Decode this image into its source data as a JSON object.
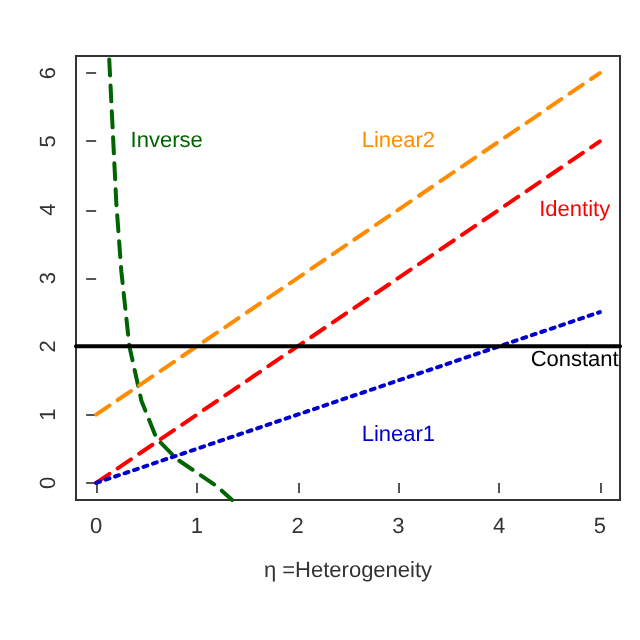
{
  "chart_data": {
    "type": "line",
    "xlabel": "η =Heterogeneity",
    "xlim": [
      -0.2,
      5.2
    ],
    "ylim": [
      -0.25,
      6.25
    ],
    "xticks": [
      0,
      1,
      2,
      3,
      4,
      5
    ],
    "yticks": [
      0,
      1,
      2,
      3,
      4,
      5,
      6
    ],
    "grid": false,
    "legend": false,
    "marker": "none",
    "series": [
      {
        "name": "Inverse",
        "color": "#006400",
        "line_style": "dashed",
        "x": [
          0.13,
          0.2,
          0.25,
          0.33,
          0.45,
          0.6,
          0.8,
          1.0,
          1.2,
          1.35
        ],
        "values": [
          6.2,
          4.1,
          3.1,
          2.0,
          1.2,
          0.65,
          0.35,
          0.15,
          -0.05,
          -0.25
        ]
      },
      {
        "name": "Linear2",
        "color": "#ff8c00",
        "line_style": "dashed",
        "x": [
          0,
          5
        ],
        "values": [
          1,
          6
        ]
      },
      {
        "name": "Identity",
        "color": "#ff0000",
        "line_style": "dashed",
        "x": [
          0,
          5
        ],
        "values": [
          0,
          5
        ]
      },
      {
        "name": "Linear1",
        "color": "#0000cd",
        "line_style": "dotted",
        "x": [
          0,
          5
        ],
        "values": [
          0,
          2.5
        ]
      },
      {
        "name": "Constant",
        "color": "#000000",
        "line_style": "solid",
        "x": [
          -0.2,
          5.2
        ],
        "values": [
          2,
          2
        ]
      }
    ]
  }
}
